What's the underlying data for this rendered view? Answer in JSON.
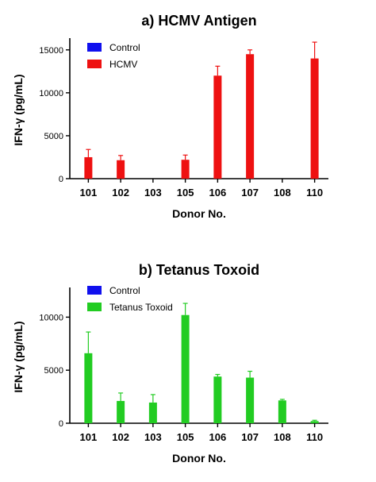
{
  "chart_data": [
    {
      "type": "bar",
      "title": "a) HCMV Antigen",
      "xlabel": "Donor No.",
      "ylabel": "IFN-γ (pg/mL)",
      "categories": [
        "101",
        "102",
        "103",
        "105",
        "106",
        "107",
        "108",
        "110"
      ],
      "ylim": [
        0,
        16000
      ],
      "yticks": [
        0,
        5000,
        10000,
        15000
      ],
      "legend_position": "top-left",
      "series": [
        {
          "name": "Control",
          "color": "#1010ee",
          "values": [
            0,
            0,
            0,
            0,
            0,
            0,
            0,
            0
          ],
          "errors": [
            0,
            0,
            0,
            0,
            0,
            0,
            0,
            0
          ]
        },
        {
          "name": "HCMV",
          "color": "#ee1111",
          "values": [
            2500,
            2150,
            0,
            2200,
            12000,
            14500,
            0,
            14000
          ],
          "errors": [
            900,
            550,
            0,
            550,
            1100,
            500,
            0,
            1900
          ]
        }
      ]
    },
    {
      "type": "bar",
      "title": "b) Tetanus Toxoid",
      "xlabel": "Donor No.",
      "ylabel": "IFN-γ (pg/mL)",
      "categories": [
        "101",
        "102",
        "103",
        "105",
        "106",
        "107",
        "108",
        "110"
      ],
      "ylim": [
        0,
        12500
      ],
      "yticks": [
        0,
        5000,
        10000
      ],
      "legend_position": "top-left",
      "series": [
        {
          "name": "Control",
          "color": "#1010ee",
          "values": [
            0,
            0,
            0,
            0,
            0,
            0,
            0,
            0
          ],
          "errors": [
            0,
            0,
            0,
            0,
            0,
            0,
            0,
            0
          ]
        },
        {
          "name": "Tetanus Toxoid",
          "color": "#22cc22",
          "values": [
            6600,
            2100,
            1950,
            10200,
            4400,
            4300,
            2150,
            200
          ],
          "errors": [
            2000,
            750,
            750,
            1100,
            200,
            600,
            100,
            80
          ]
        }
      ]
    }
  ]
}
